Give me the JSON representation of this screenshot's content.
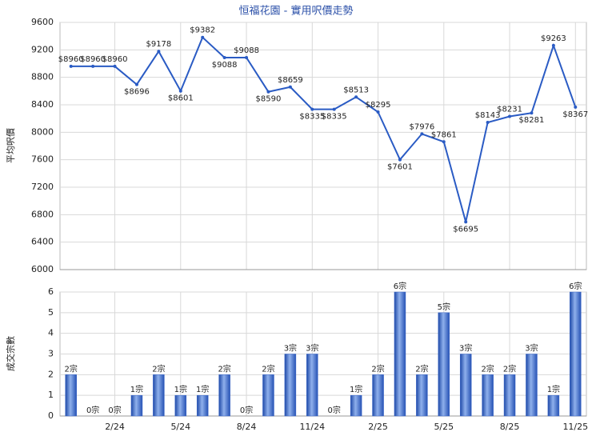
{
  "chart_data": [
    {
      "type": "line",
      "title": "恒福花園 - 實用呎價走勢",
      "y_label": "平均呎價",
      "color": "#2a5bc4",
      "values": [
        8960,
        8960,
        8960,
        8696,
        9178,
        8601,
        9382,
        9088,
        9088,
        8590,
        8659,
        8335,
        8335,
        8513,
        8295,
        7601,
        7976,
        7861,
        6695,
        8143,
        8231,
        8281,
        9263,
        8367
      ],
      "value_labels": [
        "$8960",
        "$8960",
        "$8960",
        "$8696",
        "$9178",
        "$8601",
        "$9382",
        "$9088",
        "$9088",
        "$8590",
        "$8659",
        "$8335",
        "$8335",
        "$8513",
        "$8295",
        "$7601",
        "$7976",
        "$7861",
        "$6695",
        "$8143",
        "$8231",
        "$8281",
        "$9263",
        "$8367"
      ],
      "ylim": [
        6000,
        9600
      ],
      "yticks": [
        6000,
        6400,
        6800,
        7200,
        7600,
        8000,
        8400,
        8800,
        9200,
        9600
      ],
      "grid": true
    },
    {
      "type": "bar",
      "y_label": "成交宗數",
      "color": "#3a66c8",
      "categories": [
        null,
        null,
        "2/24",
        null,
        null,
        "5/24",
        null,
        null,
        "8/24",
        null,
        null,
        "11/24",
        null,
        null,
        "2/25",
        null,
        null,
        "5/25",
        null,
        null,
        "8/25",
        null,
        null,
        "11/25"
      ],
      "values": [
        2,
        0,
        0,
        1,
        2,
        1,
        1,
        2,
        0,
        2,
        3,
        3,
        0,
        1,
        2,
        6,
        2,
        5,
        3,
        2,
        2,
        3,
        1,
        6
      ],
      "value_labels": [
        "2宗",
        "0宗",
        "0宗",
        "1宗",
        "2宗",
        "1宗",
        "1宗",
        "2宗",
        "0宗",
        "2宗",
        "3宗",
        "3宗",
        "0宗",
        "1宗",
        "2宗",
        "6宗",
        "2宗",
        "5宗",
        "3宗",
        "2宗",
        "2宗",
        "3宗",
        "1宗",
        "6宗"
      ],
      "ylim": [
        0,
        6
      ],
      "yticks": [
        0,
        1,
        2,
        3,
        4,
        5,
        6
      ],
      "grid": true
    }
  ]
}
